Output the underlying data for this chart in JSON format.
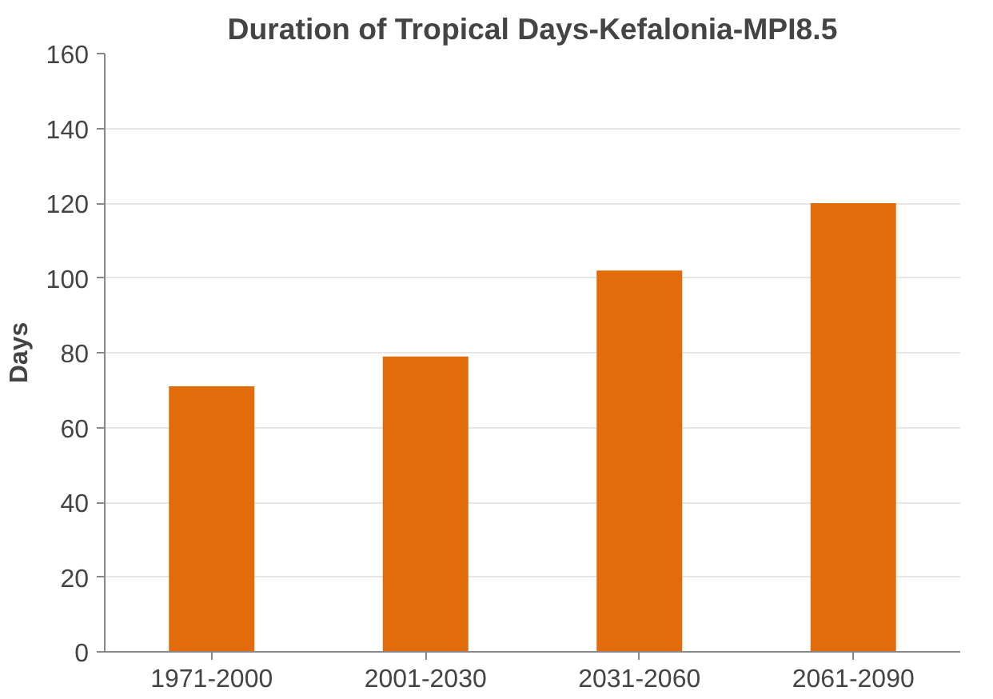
{
  "chart_data": {
    "type": "bar",
    "title": "Duration of Tropical Days-Kefalonia-MPI8.5",
    "ylabel": "Days",
    "categories": [
      "1971-2000",
      "2001-2030",
      "2031-2060",
      "2061-2090"
    ],
    "values": [
      71,
      79,
      102,
      120
    ],
    "color": "#e36c0a",
    "ylim": [
      0,
      160
    ],
    "yticks": [
      0,
      20,
      40,
      60,
      80,
      100,
      120,
      140,
      160
    ],
    "grid": "y"
  }
}
